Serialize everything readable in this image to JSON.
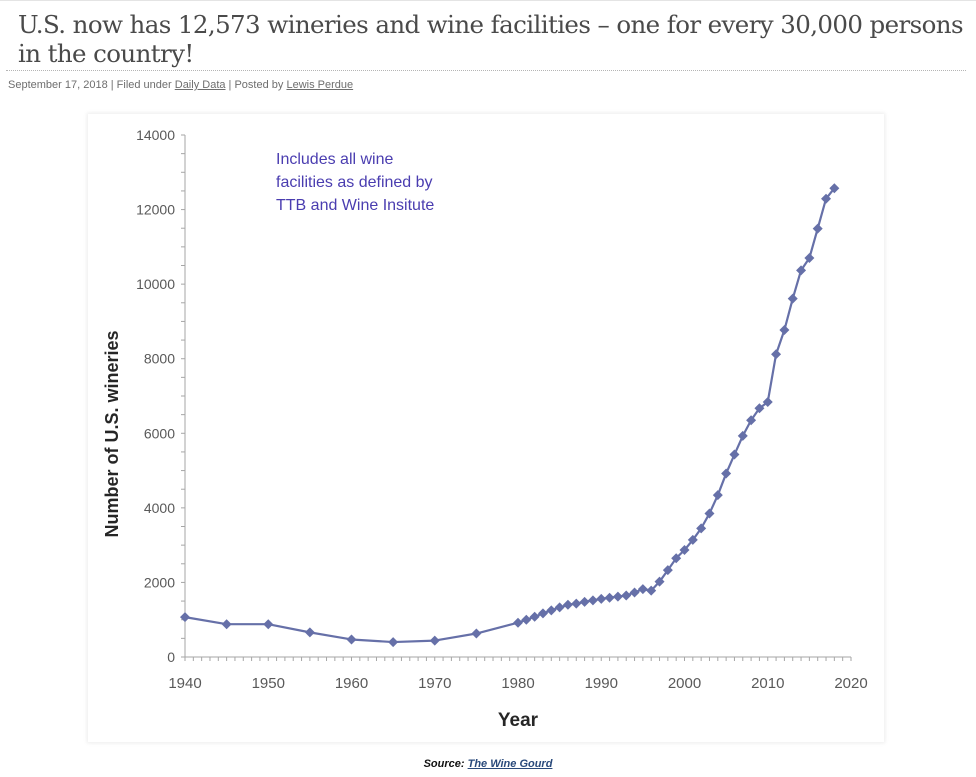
{
  "post": {
    "title": "U.S. now has 12,573 wineries and wine facilities – one for every 30,000 persons in the country!",
    "date": "September 17, 2018",
    "filed_prefix": " | Filed under ",
    "category": "Daily Data",
    "posted_prefix": " | Posted by ",
    "author": "Lewis Perdue"
  },
  "source": {
    "label": "Source:",
    "link_text": "The Wine Gourd"
  },
  "colors": {
    "series": "#6670a8",
    "annotation": "#4a3db0",
    "axis": "#a6a6a6",
    "tick_text": "#595959",
    "axis_title": "#262626"
  },
  "chart_data": {
    "type": "line",
    "title": "",
    "xlabel": "Year",
    "ylabel": "Number of U.S. wineries",
    "xlim": [
      1940,
      2020
    ],
    "ylim": [
      0,
      14000
    ],
    "x_ticks": [
      1940,
      1950,
      1960,
      1970,
      1980,
      1990,
      2000,
      2010,
      2020
    ],
    "y_ticks": [
      0,
      2000,
      4000,
      6000,
      8000,
      10000,
      12000,
      14000
    ],
    "grid": false,
    "legend": "none",
    "annotation": [
      "Includes all wine",
      "facilities as defined by",
      "TTB and Wine Insitute"
    ],
    "series": [
      {
        "name": "U.S. wineries",
        "marker": "diamond",
        "x": [
          1940,
          1945,
          1950,
          1955,
          1960,
          1965,
          1970,
          1975,
          1980,
          1981,
          1982,
          1983,
          1984,
          1985,
          1986,
          1987,
          1988,
          1989,
          1990,
          1991,
          1992,
          1993,
          1994,
          1995,
          1996,
          1997,
          1998,
          1999,
          2000,
          2001,
          2002,
          2003,
          2004,
          2005,
          2006,
          2007,
          2008,
          2009,
          2010,
          2011,
          2012,
          2013,
          2014,
          2015,
          2016,
          2017,
          2018
        ],
        "values": [
          1070,
          880,
          880,
          660,
          470,
          400,
          440,
          630,
          920,
          1000,
          1080,
          1170,
          1250,
          1330,
          1400,
          1430,
          1480,
          1520,
          1560,
          1590,
          1620,
          1650,
          1730,
          1820,
          1780,
          2020,
          2330,
          2650,
          2870,
          3140,
          3450,
          3850,
          4340,
          4920,
          5430,
          5930,
          6350,
          6670,
          6840,
          8120,
          8770,
          9610,
          10370,
          10700,
          11490,
          12290,
          12573
        ]
      }
    ]
  }
}
